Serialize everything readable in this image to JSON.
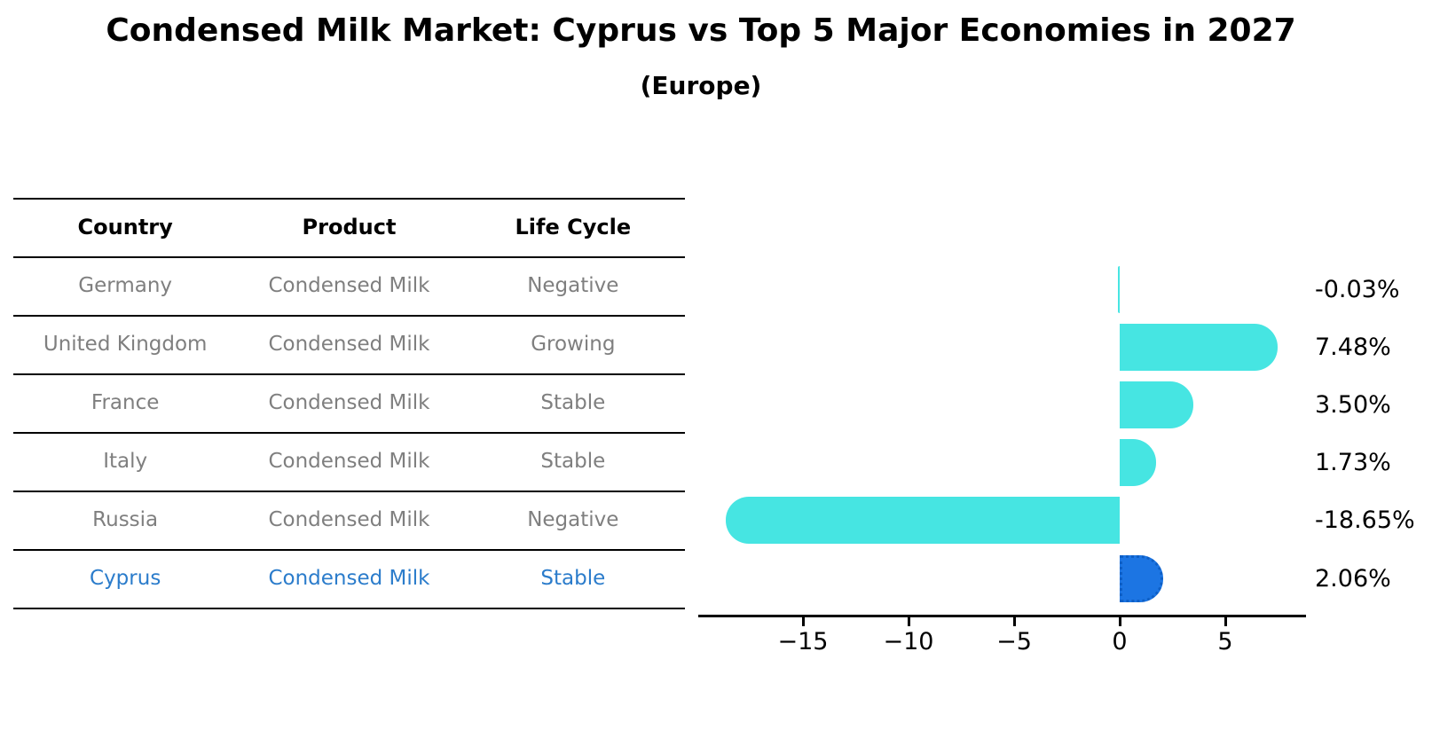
{
  "header": {
    "title": "Condensed Milk Market: Cyprus vs Top 5 Major Economies in 2027",
    "subtitle": "(Europe)"
  },
  "table": {
    "headers": [
      "Country",
      "Product",
      "Life Cycle"
    ],
    "rows": [
      {
        "country": "Germany",
        "product": "Condensed Milk",
        "life_cycle": "Negative",
        "highlighted": false
      },
      {
        "country": "United Kingdom",
        "product": "Condensed Milk",
        "life_cycle": "Growing",
        "highlighted": false
      },
      {
        "country": "France",
        "product": "Condensed Milk",
        "life_cycle": "Stable",
        "highlighted": false
      },
      {
        "country": "Italy",
        "product": "Condensed Milk",
        "life_cycle": "Stable",
        "highlighted": false
      },
      {
        "country": "Russia",
        "product": "Condensed Milk",
        "life_cycle": "Negative",
        "highlighted": false
      },
      {
        "country": "Cyprus",
        "product": "Condensed Milk",
        "life_cycle": "Stable",
        "highlighted": true
      }
    ]
  },
  "chart_data": {
    "type": "bar",
    "orientation": "horizontal",
    "title": "Condensed Milk Market: Cyprus vs Top 5 Major Economies in 2027 (Europe)",
    "categories": [
      "Germany",
      "United Kingdom",
      "France",
      "Italy",
      "Russia",
      "Cyprus"
    ],
    "values": [
      -0.03,
      7.48,
      3.5,
      1.73,
      -18.65,
      2.06
    ],
    "value_labels": [
      "-0.03%",
      "7.48%",
      "3.50%",
      "1.73%",
      "-18.65%",
      "2.06%"
    ],
    "xlabel": "",
    "ylabel": "",
    "xlim": [
      -20,
      8.8
    ],
    "xticks": [
      -15,
      -10,
      -5,
      0,
      5
    ],
    "xtick_labels": [
      "−15",
      "−10",
      "−5",
      "0",
      "5"
    ],
    "grid": false,
    "legend": null,
    "bar_color": "#46e5e2",
    "highlight_color": "#1c75e3",
    "highlight_index": 5,
    "highlight_category": "Cyprus"
  },
  "colors": {
    "bar_cyan": "#46e5e2",
    "bar_blue": "#1c75e3",
    "table_text_gray": "#7f7f7f",
    "table_text_blue": "#2b7ccb",
    "axis_black": "#000000"
  }
}
